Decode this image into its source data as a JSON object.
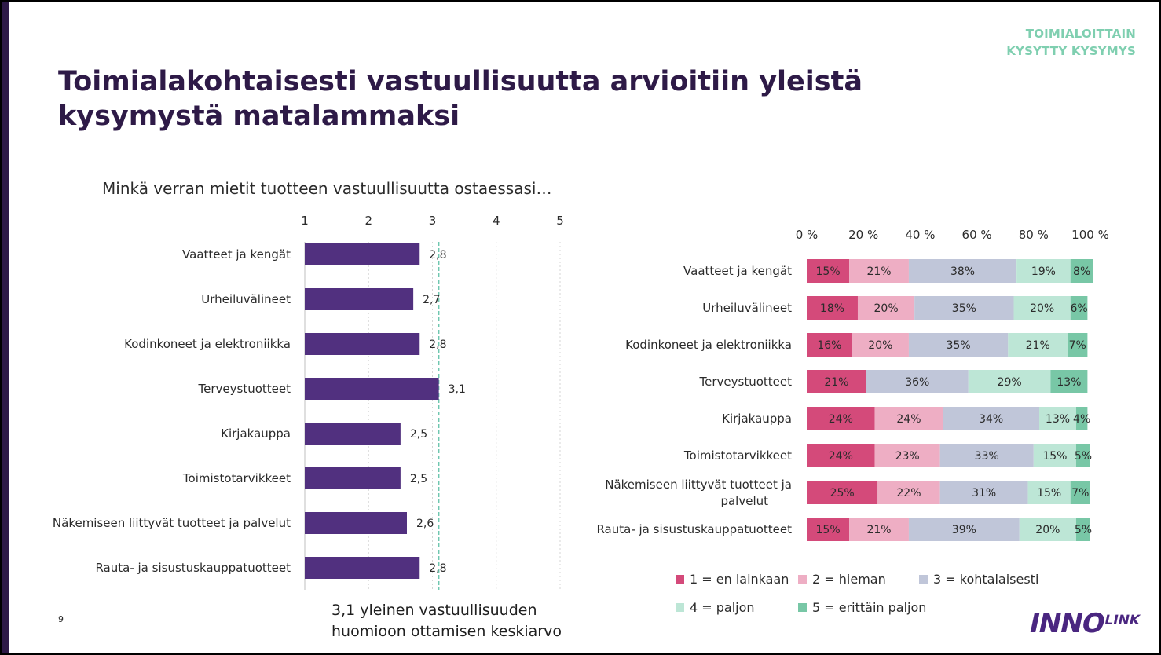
{
  "tag": {
    "line1": "TOIMIALOITTAIN",
    "line2": "KYSYTTY KYSYMYS"
  },
  "title": "Toimialakohtaisesti vastuullisuutta arvioitiin yleistä kysymystä matalammaksi",
  "question": "Minkä verran mietit tuotteen vastuullisuutta ostaessasi…",
  "average_note": {
    "line1": "3,1 yleinen vastuullisuuden",
    "line2": "huomioon ottamisen keskiarvo"
  },
  "page_number": "9",
  "logo": {
    "big": "INNO",
    "small": "LINK"
  },
  "colors": {
    "title": "#2e1a47",
    "tag": "#7fcfb0",
    "bar": "#51307f",
    "reference_line": "#6fc7b0",
    "stack": [
      "#d44a7a",
      "#eeaec4",
      "#c0c6d9",
      "#bde6d6",
      "#78c7a6"
    ]
  },
  "chart_data": [
    {
      "type": "bar",
      "orientation": "horizontal",
      "categories": [
        "Vaatteet ja kengät",
        "Urheiluvälineet",
        "Kodinkoneet ja elektroniikka",
        "Terveystuotteet",
        "Kirjakauppa",
        "Toimistotarvikkeet",
        "Näkemiseen liittyvät tuotteet ja palvelut",
        "Rauta- ja sisustuskauppatuotteet"
      ],
      "values": [
        2.8,
        2.7,
        2.8,
        3.1,
        2.5,
        2.5,
        2.6,
        2.8
      ],
      "value_labels": [
        "2,8",
        "2,7",
        "2,8",
        "3,1",
        "2,5",
        "2,5",
        "2,6",
        "2,8"
      ],
      "xlim": [
        1,
        5
      ],
      "ticks": [
        "1",
        "2",
        "3",
        "4",
        "5"
      ],
      "tick_values": [
        1,
        2,
        3,
        4,
        5
      ],
      "reference_value": 3.1,
      "grid": true
    },
    {
      "type": "bar",
      "orientation": "horizontal",
      "stacked": true,
      "categories": [
        "Vaatteet ja kengät",
        "Urheiluvälineet",
        "Kodinkoneet ja elektroniikka",
        "Terveystuotteet",
        "Kirjakauppa",
        "Toimistotarvikkeet",
        "Näkemiseen liittyvät tuotteet ja palvelut",
        "Rauta- ja sisustuskauppatuotteet"
      ],
      "ticks": [
        "0 %",
        "20 %",
        "40 %",
        "60 %",
        "80 %",
        "100 %"
      ],
      "tick_values": [
        0,
        20,
        40,
        60,
        80,
        100
      ],
      "xlim": [
        0,
        100
      ],
      "series": [
        {
          "name": "1 = en lainkaan",
          "values": [
            15,
            18,
            16,
            21,
            24,
            24,
            25,
            15
          ]
        },
        {
          "name": "2 = hieman",
          "values": [
            21,
            20,
            20,
            0,
            24,
            23,
            22,
            21
          ]
        },
        {
          "name": "3 = kohtalaisesti",
          "values": [
            38,
            35,
            35,
            36,
            34,
            33,
            31,
            39
          ]
        },
        {
          "name": "4 = paljon",
          "values": [
            19,
            20,
            21,
            29,
            13,
            15,
            15,
            20
          ]
        },
        {
          "name": "5 = erittäin paljon",
          "values": [
            8,
            6,
            7,
            13,
            4,
            5,
            7,
            5
          ]
        }
      ],
      "legend": "bottom"
    }
  ]
}
